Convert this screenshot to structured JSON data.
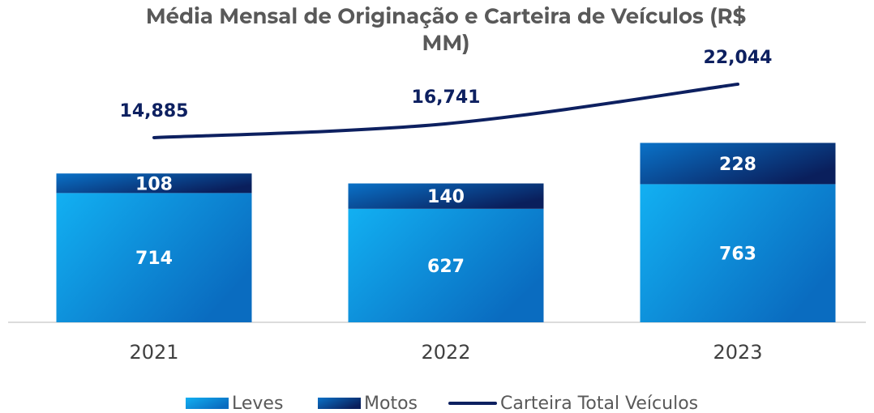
{
  "chart_data": {
    "type": "bar",
    "stacked": true,
    "title": "Média Mensal de Originação e Carteira de Veículos (R$ MM)",
    "categories": [
      "2021",
      "2022",
      "2023"
    ],
    "series": [
      {
        "name": "Leves",
        "type": "bar",
        "color": [
          "#12b0f2",
          "#0a6cc0"
        ],
        "values": [
          714,
          627,
          763
        ]
      },
      {
        "name": "Motos",
        "type": "bar",
        "color": [
          "#0a72c8",
          "#0a1f5c"
        ],
        "values": [
          108,
          140,
          228
        ]
      },
      {
        "name": "Carteira Total Veículos",
        "type": "line",
        "axis": "y2",
        "color": "#0d2060",
        "values": [
          14885,
          16741,
          22044
        ],
        "value_labels": [
          "14,885",
          "16,741",
          "22,044"
        ]
      }
    ],
    "ylim": [
      0,
      1400
    ],
    "y2lim": [
      -9850,
      24100
    ],
    "grid": false,
    "legend": "bottom"
  }
}
